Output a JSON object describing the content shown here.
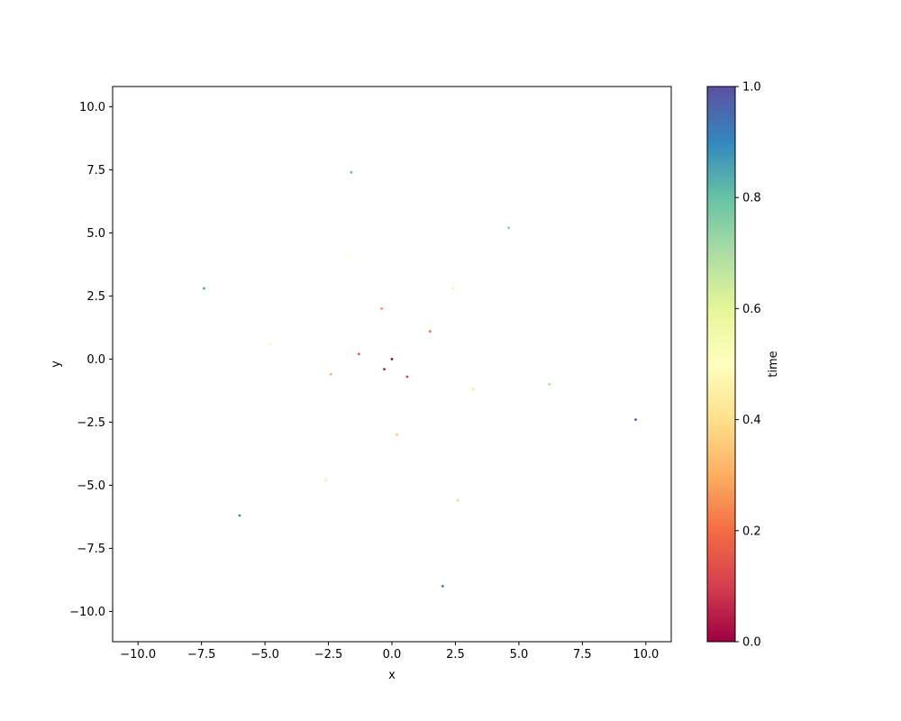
{
  "chart_data": {
    "type": "scatter",
    "title": "",
    "xlabel": "x",
    "ylabel": "y",
    "xlim": [
      -11.0,
      11.0
    ],
    "ylim": [
      -11.2,
      10.8
    ],
    "x_ticks": [
      -10.0,
      -7.5,
      -5.0,
      -2.5,
      0.0,
      2.5,
      5.0,
      7.5,
      10.0
    ],
    "x_tick_labels": [
      "−10.0",
      "−7.5",
      "−5.0",
      "−2.5",
      "0.0",
      "2.5",
      "5.0",
      "7.5",
      "10.0"
    ],
    "y_ticks": [
      -10.0,
      -7.5,
      -5.0,
      -2.5,
      0.0,
      2.5,
      5.0,
      7.5,
      10.0
    ],
    "y_tick_labels": [
      "−10.0",
      "−7.5",
      "−5.0",
      "−2.5",
      "0.0",
      "2.5",
      "5.0",
      "7.5",
      "10.0"
    ],
    "grid": false,
    "legend": "none",
    "color_by": "time",
    "colormap": "Spectral",
    "colorbar": {
      "label": "time",
      "range": [
        0.0,
        1.0
      ],
      "ticks": [
        0.0,
        0.2,
        0.4,
        0.6,
        0.8,
        1.0
      ],
      "tick_labels": [
        "0.0",
        "0.2",
        "0.4",
        "0.6",
        "0.8",
        "1.0"
      ]
    },
    "point_color": "#000000",
    "series": [
      {
        "description_of_distribution": "",
        "points_time_x_y": [
          [
            0.0,
            0.0,
            0.0
          ],
          [
            0.05,
            -0.3,
            -0.4
          ],
          [
            0.1,
            0.6,
            -0.7
          ],
          [
            0.15,
            -1.3,
            0.2
          ],
          [
            0.2,
            1.5,
            1.1
          ],
          [
            0.25,
            -0.4,
            2.0
          ],
          [
            0.3,
            -2.4,
            -0.6
          ],
          [
            0.35,
            0.2,
            -3.0
          ],
          [
            0.4,
            3.2,
            -1.2
          ],
          [
            0.45,
            2.4,
            2.8
          ],
          [
            0.5,
            -1.8,
            4.2
          ],
          [
            0.55,
            -4.8,
            0.6
          ],
          [
            0.6,
            -2.6,
            -4.8
          ],
          [
            0.65,
            2.6,
            -5.6
          ],
          [
            0.7,
            6.2,
            -1.0
          ],
          [
            0.75,
            4.6,
            5.2
          ],
          [
            0.8,
            -1.6,
            7.4
          ],
          [
            0.85,
            -7.4,
            2.8
          ],
          [
            0.9,
            -6.0,
            -6.2
          ],
          [
            0.95,
            2.0,
            -9.0
          ],
          [
            1.0,
            9.6,
            -2.4
          ]
        ]
      }
    ]
  }
}
